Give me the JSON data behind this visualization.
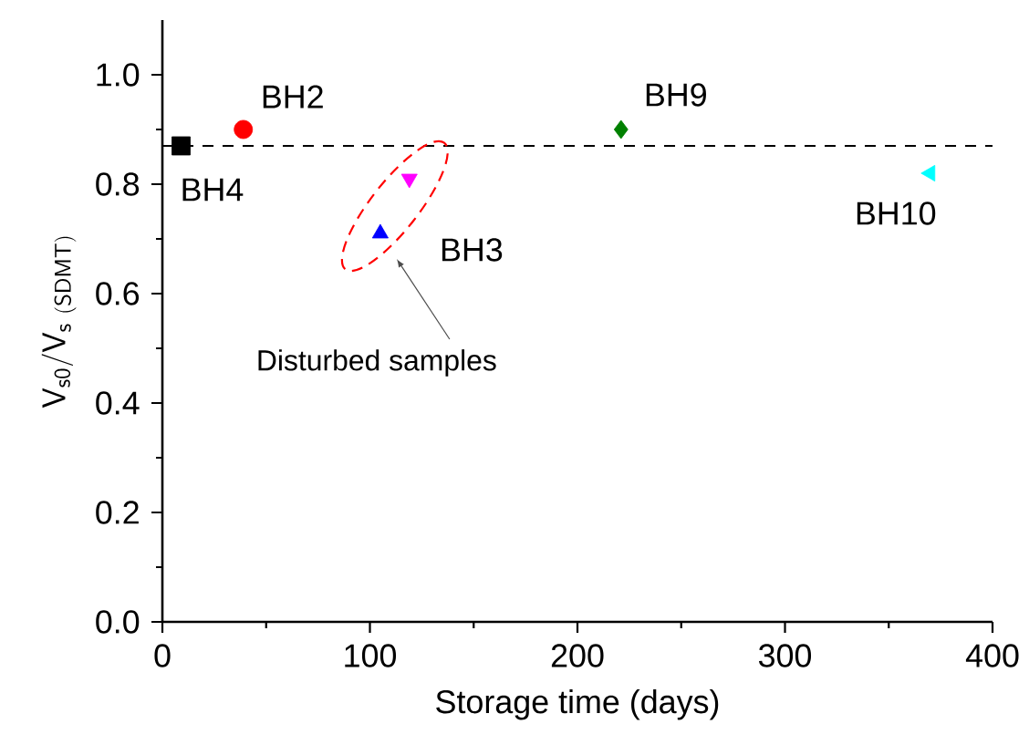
{
  "chart_data": {
    "type": "scatter",
    "xlabel": "Storage time (days)",
    "ylabel": "\\mathsf{V}_{\\mathsf{s0}}/\\mathsf{V}_{\\mathsf{s\\ (SDMT)}}",
    "xlim": [
      0,
      400
    ],
    "xticks": [
      0,
      100,
      200,
      300,
      400
    ],
    "ylim": [
      0,
      1.1
    ],
    "yticks": [
      {
        "value": 0,
        "label": "0.0"
      },
      {
        "value": 0.2,
        "label": "0.2"
      },
      {
        "value": 0.4,
        "label": "0.4"
      },
      {
        "value": 0.6,
        "label": "0.6"
      },
      {
        "value": 0.8,
        "label": "0.8"
      },
      {
        "value": 1.0,
        "label": "1.0"
      }
    ],
    "grid": false,
    "series": [
      {
        "name": "BH4",
        "color": "#000000",
        "marker": "square",
        "x": [
          9
        ],
        "values": [
          0.87
        ]
      },
      {
        "name": "BH2",
        "color": "#ff0000",
        "marker": "circle",
        "x": [
          39
        ],
        "values": [
          0.9
        ]
      },
      {
        "name": "BH3",
        "color": "#0000ff",
        "marker": "triangle",
        "x": [
          105
        ],
        "values": [
          0.71
        ]
      },
      {
        "color": "#ff00ff",
        "marker": "triangle-down",
        "x": [
          119
        ],
        "values": [
          0.81
        ]
      },
      {
        "name": "BH9",
        "color": "#008000",
        "marker": "diamond",
        "x": [
          221
        ],
        "values": [
          0.9
        ]
      },
      {
        "name": "BH10",
        "color": "#00ffff",
        "marker": "triangle-left",
        "x": [
          370
        ],
        "values": [
          0.82
        ]
      }
    ],
    "ref_lines": [
      {
        "axis": "y",
        "value": 0.87,
        "line_style": "dashed",
        "color": "#000000"
      }
    ],
    "annotations": [
      "Disturbed samples"
    ]
  }
}
